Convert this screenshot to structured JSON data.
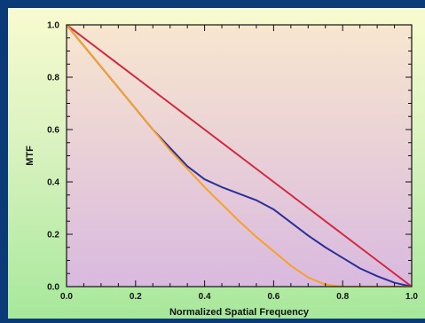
{
  "chart_data": {
    "type": "line",
    "xlabel": "Normalized Spatial Frequency",
    "ylabel": "MTF",
    "xlim": [
      0,
      1
    ],
    "ylim": [
      0,
      1
    ],
    "x_ticks": [
      "0.0",
      "0.2",
      "0.4",
      "0.6",
      "0.8",
      "1.0"
    ],
    "y_ticks": [
      "0.0",
      "0.2",
      "0.4",
      "0.6",
      "0.8",
      "1.0"
    ],
    "grid": false,
    "plot_background": {
      "top": "#f8e6cf",
      "bottom": "#d9b9df"
    },
    "series": [
      {
        "color": "#d2283f",
        "x": [
          0.0,
          0.1,
          0.2,
          0.3,
          0.4,
          0.5,
          0.6,
          0.7,
          0.8,
          0.9,
          1.0
        ],
        "y": [
          1.0,
          0.9,
          0.8,
          0.7,
          0.6,
          0.5,
          0.4,
          0.3,
          0.2,
          0.1,
          0.0
        ]
      },
      {
        "color": "#2a2f9a",
        "x": [
          0.0,
          0.05,
          0.1,
          0.15,
          0.2,
          0.25,
          0.3,
          0.35,
          0.4,
          0.45,
          0.5,
          0.55,
          0.6,
          0.65,
          0.7,
          0.75,
          0.8,
          0.85,
          0.9,
          0.95,
          1.0
        ],
        "y": [
          1.0,
          0.92,
          0.84,
          0.76,
          0.68,
          0.6,
          0.53,
          0.46,
          0.41,
          0.38,
          0.355,
          0.33,
          0.295,
          0.245,
          0.195,
          0.15,
          0.11,
          0.07,
          0.04,
          0.015,
          0.0
        ]
      },
      {
        "color": "#f5a12c",
        "x": [
          0.0,
          0.05,
          0.1,
          0.15,
          0.2,
          0.25,
          0.3,
          0.35,
          0.4,
          0.45,
          0.5,
          0.55,
          0.6,
          0.65,
          0.7,
          0.75,
          0.8,
          0.9,
          1.0
        ],
        "y": [
          1.0,
          0.92,
          0.84,
          0.76,
          0.68,
          0.6,
          0.52,
          0.45,
          0.38,
          0.315,
          0.25,
          0.19,
          0.135,
          0.08,
          0.035,
          0.008,
          0.0,
          0.0,
          0.0
        ]
      }
    ]
  }
}
